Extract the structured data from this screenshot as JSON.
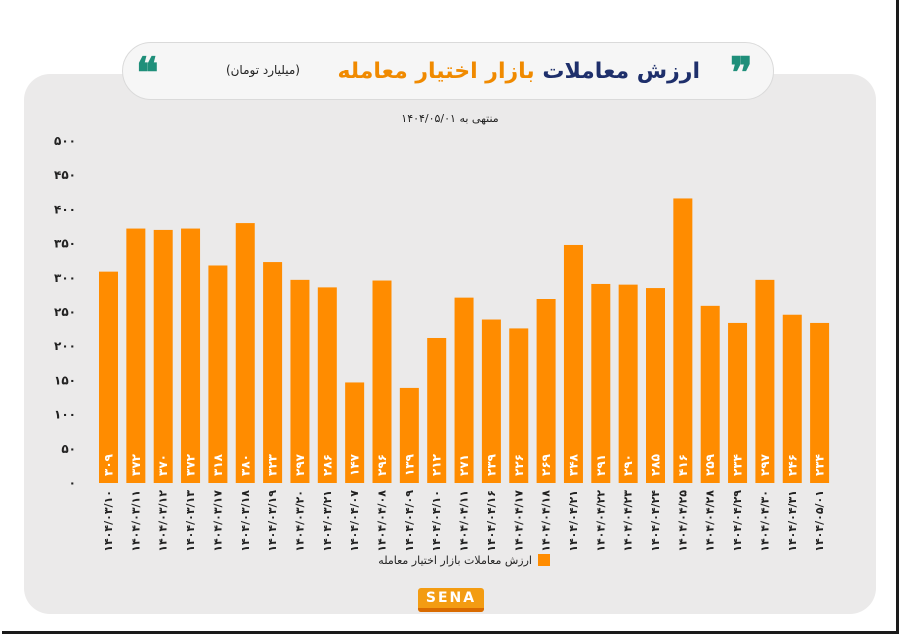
{
  "header": {
    "title_part1": "ارزش معاملات",
    "title_part2": "بازار اختیار معامله",
    "subtitle": "(میلیارد تومان)",
    "quote_left": "❝",
    "quote_right": "❞"
  },
  "date_note": "منتهی به ۱۴۰۴/۰۵/۰۱",
  "logo_text": "SENA",
  "colors": {
    "bar": "#ff8c00",
    "panel": "#ebeaea",
    "title_dark": "#1e2f6b",
    "title_accent": "#f08a00",
    "quote": "#1f8f7a"
  },
  "chart_data": {
    "type": "bar",
    "title": "ارزش معاملات بازار اختیار معامله",
    "ylim": [
      0,
      500
    ],
    "yticks": [
      "۵۰۰",
      "۴۵۰",
      "۴۰۰",
      "۳۵۰",
      "۳۰۰",
      "۲۵۰",
      "۲۰۰",
      "۱۵۰",
      "۱۰۰",
      "۵۰",
      "۰"
    ],
    "ytick_values": [
      500,
      450,
      400,
      350,
      300,
      250,
      200,
      150,
      100,
      50,
      0
    ],
    "grid": false,
    "legend_position": "bottom",
    "categories": [
      "۱۴۰۴/۰۳/۱۰",
      "۱۴۰۴/۰۳/۱۱",
      "۱۴۰۴/۰۳/۱۲",
      "۱۴۰۴/۰۳/۱۳",
      "۱۴۰۴/۰۳/۱۷",
      "۱۴۰۴/۰۳/۱۸",
      "۱۴۰۴/۰۳/۱۹",
      "۱۴۰۴/۰۳/۲۰",
      "۱۴۰۴/۰۳/۲۱",
      "۱۴۰۴/۰۴/۰۷",
      "۱۴۰۴/۰۴/۰۸",
      "۱۴۰۴/۰۴/۰۹",
      "۱۴۰۴/۰۴/۱۰",
      "۱۴۰۴/۰۴/۱۱",
      "۱۴۰۴/۰۴/۱۶",
      "۱۴۰۴/۰۴/۱۷",
      "۱۴۰۴/۰۴/۱۸",
      "۱۴۰۴/۰۴/۲۱",
      "۱۴۰۴/۰۴/۲۲",
      "۱۴۰۴/۰۴/۲۳",
      "۱۴۰۴/۰۴/۲۴",
      "۱۴۰۴/۰۴/۲۵",
      "۱۴۰۴/۰۴/۲۸",
      "۱۴۰۴/۰۴/۲۹",
      "۱۴۰۴/۰۴/۳۰",
      "۱۴۰۴/۰۴/۳۱",
      "۱۴۰۴/۰۵/۰۱"
    ],
    "series": [
      {
        "name": "ارزش معاملات بازار اختیار معامله",
        "values": [
          309,
          372,
          370,
          372,
          318,
          380,
          323,
          297,
          286,
          147,
          296,
          139,
          212,
          271,
          239,
          226,
          269,
          348,
          291,
          290,
          285,
          416,
          259,
          234,
          297,
          246,
          234
        ],
        "labels": [
          "۳۰۹",
          "۳۷۲",
          "۳۷۰",
          "۳۷۲",
          "۳۱۸",
          "۳۸۰",
          "۳۲۳",
          "۲۹۷",
          "۲۸۶",
          "۱۴۷",
          "۲۹۶",
          "۱۳۹",
          "۲۱۲",
          "۲۷۱",
          "۲۳۹",
          "۲۲۶",
          "۲۶۹",
          "۳۴۸",
          "۲۹۱",
          "۲۹۰",
          "۲۸۵",
          "۴۱۶",
          "۲۵۹",
          "۲۳۴",
          "۲۹۷",
          "۲۴۶",
          "۲۳۴"
        ]
      }
    ]
  }
}
